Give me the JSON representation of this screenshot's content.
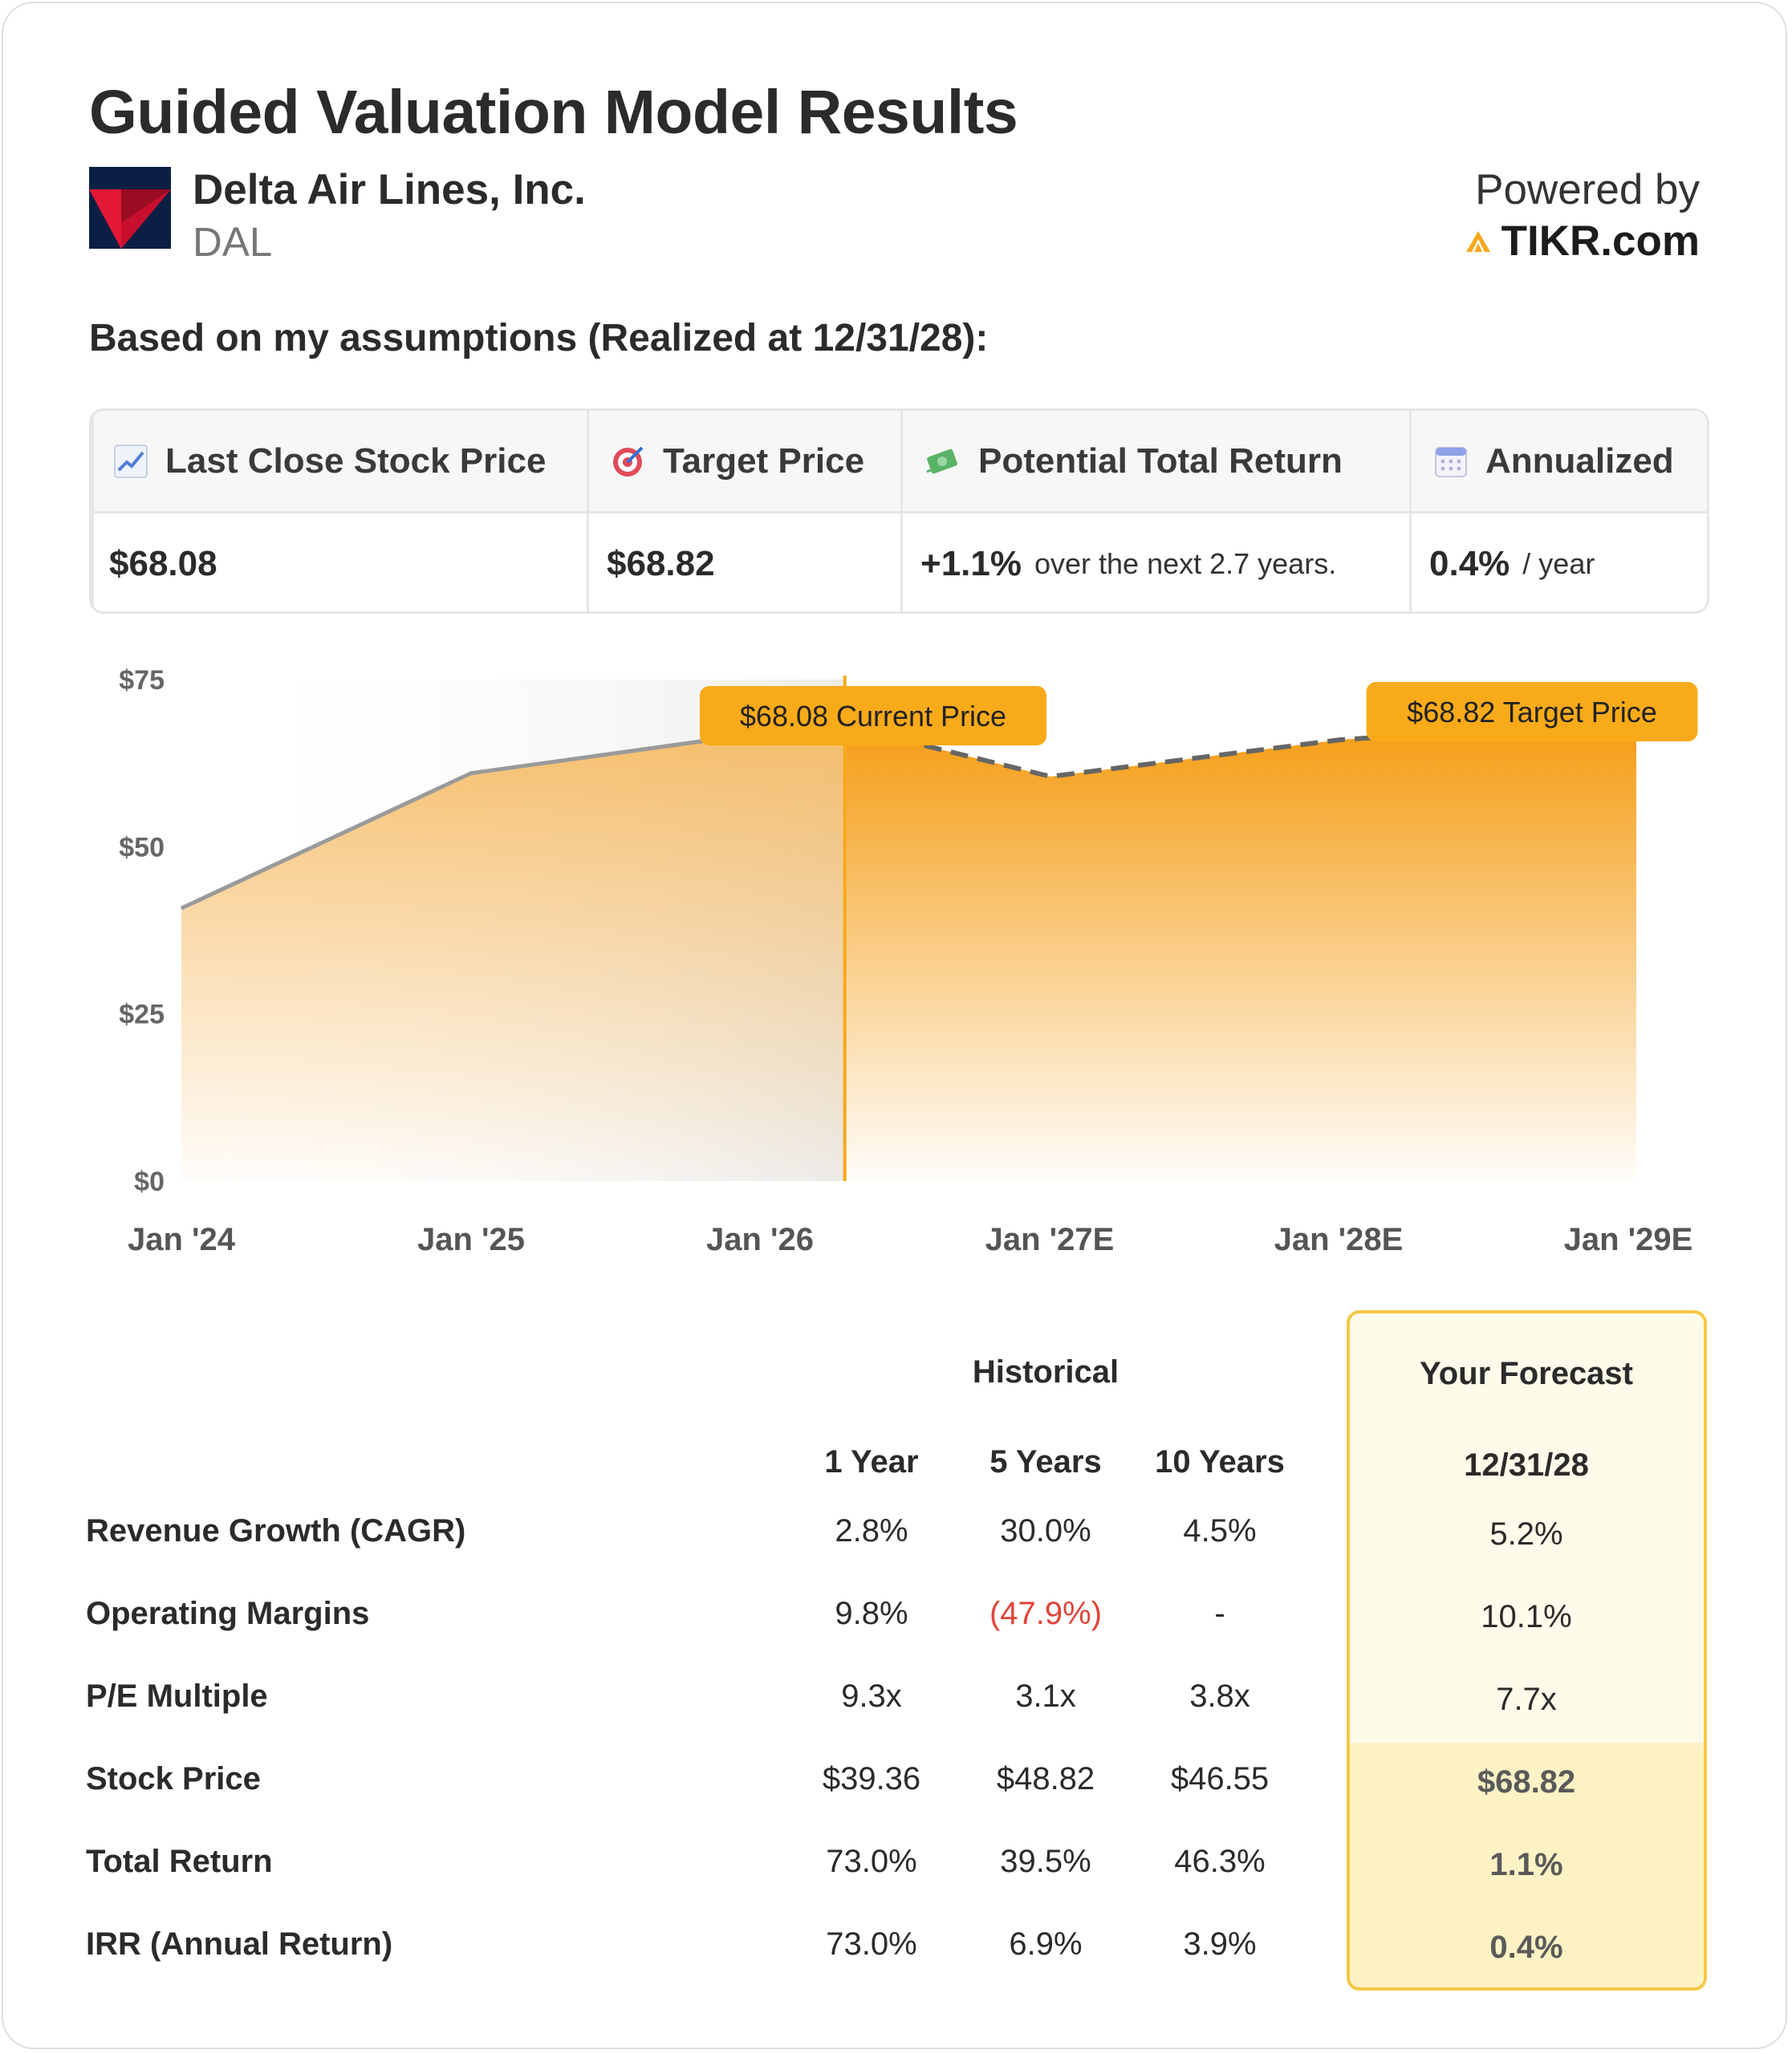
{
  "header": {
    "title": "Guided Valuation Model Results",
    "company_name": "Delta Air Lines, Inc.",
    "ticker": "DAL",
    "powered_by": "Powered by",
    "brand": "TIKR.com"
  },
  "assumptions_text": "Based on my assumptions (Realized at 12/31/28):",
  "metrics": [
    {
      "icon": "chart-up-icon",
      "label": "Last Close Stock Price",
      "value": "$68.08",
      "suffix": ""
    },
    {
      "icon": "target-icon",
      "label": "Target Price",
      "value": "$68.82",
      "suffix": ""
    },
    {
      "icon": "money-icon",
      "label": "Potential Total Return",
      "value": "+1.1%",
      "suffix": "over the next 2.7 years."
    },
    {
      "icon": "calendar-icon",
      "label": "Annualized",
      "value": "0.4%",
      "suffix": "/ year"
    }
  ],
  "chart_data": {
    "type": "area",
    "x": [
      "Jan '24",
      "Jan '25",
      "Jan '26",
      "Current",
      "Jan '27E",
      "Jan '28E",
      "Jan '29E"
    ],
    "x_ticks": [
      "Jan '24",
      "Jan '25",
      "Jan '26",
      "Jan '27E",
      "Jan '28E",
      "Jan '29E"
    ],
    "historical": [
      {
        "x": 2024.13,
        "y": 40.8
      },
      {
        "x": 2025.13,
        "y": 61.0
      },
      {
        "x": 2026.13,
        "y": 67.0
      },
      {
        "x": 2026.42,
        "y": 68.08
      }
    ],
    "forecast": [
      {
        "x": 2026.42,
        "y": 68.08
      },
      {
        "x": 2027.13,
        "y": 60.5
      },
      {
        "x": 2028.13,
        "y": 66.0
      },
      {
        "x": 2029.13,
        "y": 68.82
      }
    ],
    "y_ticks": [
      "$0",
      "$25",
      "$50",
      "$75"
    ],
    "ylim": [
      0,
      75
    ],
    "xlim": [
      2024.0,
      2029.13
    ],
    "annotations": {
      "current": "$68.08 Current Price",
      "target": "$68.82 Target Price"
    },
    "colors": {
      "historical_line": "#9a9a9a",
      "forecast_line": "#666666",
      "accent": "#f7a81b"
    }
  },
  "table": {
    "historical_label": "Historical",
    "forecast_label": "Your Forecast",
    "columns": [
      "1 Year",
      "5 Years",
      "10 Years"
    ],
    "forecast_column": "12/31/28",
    "rows": [
      {
        "label": "Revenue Growth (CAGR)",
        "values": [
          "2.8%",
          "30.0%",
          "4.5%"
        ],
        "forecast": "5.2%"
      },
      {
        "label": "Operating Margins",
        "values": [
          "9.8%",
          "(47.9%)",
          "-"
        ],
        "forecast": "10.1%"
      },
      {
        "label": "P/E Multiple",
        "values": [
          "9.3x",
          "3.1x",
          "3.8x"
        ],
        "forecast": "7.7x"
      },
      {
        "label": "Stock Price",
        "values": [
          "$39.36",
          "$48.82",
          "$46.55"
        ],
        "forecast": "$68.82"
      },
      {
        "label": "Total Return",
        "values": [
          "73.0%",
          "39.5%",
          "46.3%"
        ],
        "forecast": "1.1%"
      },
      {
        "label": "IRR (Annual Return)",
        "values": [
          "73.0%",
          "6.9%",
          "3.9%"
        ],
        "forecast": "0.4%"
      }
    ]
  }
}
